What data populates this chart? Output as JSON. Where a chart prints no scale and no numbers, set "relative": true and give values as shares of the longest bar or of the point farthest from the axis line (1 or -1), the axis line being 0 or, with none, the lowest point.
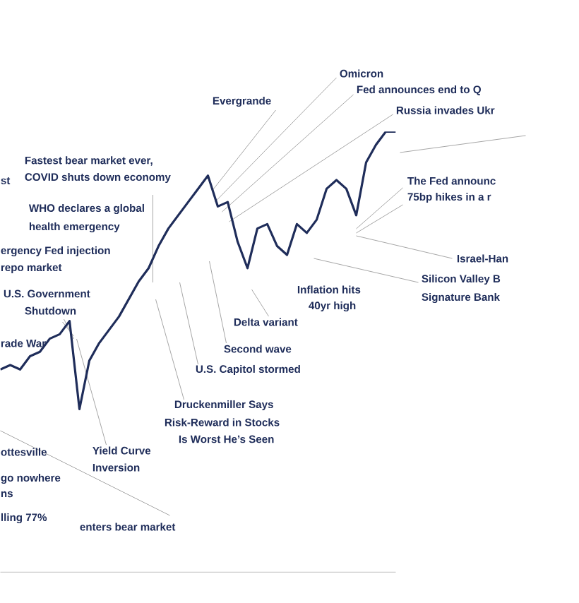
{
  "chart_data": {
    "type": "line",
    "relative": true,
    "categories": [
      null,
      null,
      null,
      null,
      null,
      null,
      null,
      null,
      null,
      null,
      null,
      null,
      null,
      null,
      null,
      null,
      null,
      null,
      null,
      null,
      null,
      null,
      null,
      null,
      null,
      null,
      null,
      null,
      null,
      null,
      null,
      null,
      null,
      null,
      null,
      null,
      null,
      null,
      null,
      null,
      null
    ],
    "series": [
      {
        "color": "#1f2d5a",
        "values": [
          0.46,
          0.47,
          0.46,
          0.49,
          0.5,
          0.53,
          0.54,
          0.57,
          0.37,
          0.48,
          0.52,
          0.55,
          0.58,
          0.62,
          0.66,
          0.69,
          0.74,
          0.78,
          0.81,
          0.84,
          0.87,
          0.9,
          0.83,
          0.84,
          0.75,
          0.69,
          0.78,
          0.79,
          0.74,
          0.72,
          0.79,
          0.77,
          0.8,
          0.87,
          0.89,
          0.87,
          0.81,
          0.93,
          0.97,
          1,
          1
        ]
      }
    ],
    "annotations": [
      "Omicron",
      "Fed announces end to Q",
      "Russia invades Ukr",
      "Evergrande",
      "st",
      "Fastest bear market ever,",
      "COVID shuts down economy",
      "WHO declares a global",
      "health emergency",
      "ergency Fed injection",
      "repo market",
      "U.S. Government",
      "Shutdown",
      "rade War",
      "The Fed announc",
      "75bp hikes in a r",
      "Israel-Han",
      "Silicon Valley B",
      "Signature Bank",
      "Inflation hits",
      "40yr high",
      "Delta variant",
      "Second wave",
      "U.S. Capitol stormed",
      "Druckenmiller Says",
      "Risk-Reward in Stocks",
      "Is Worst He’s Seen",
      "Yield Curve",
      "Inversion",
      "ottesville",
      "go nowhere",
      "ns",
      "lling 77%",
      "enters bear market"
    ]
  }
}
